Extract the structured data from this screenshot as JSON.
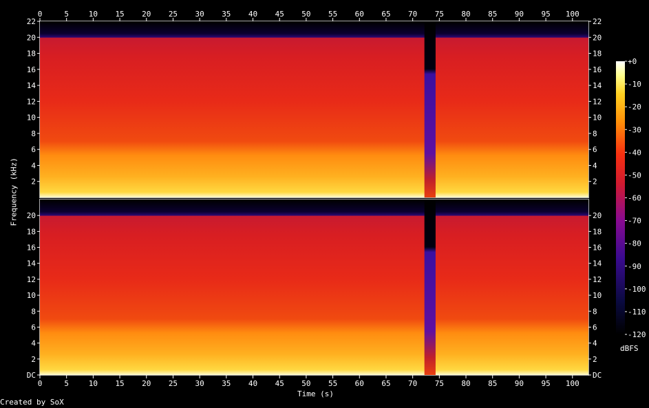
{
  "chart_data": {
    "type": "heatmap",
    "title": "",
    "xlabel": "Time (s)",
    "ylabel": "Frequency (kHz)",
    "credit": "Created by SoX",
    "x_range": [
      0,
      103
    ],
    "x_ticks": [
      "0",
      "5",
      "10",
      "15",
      "20",
      "25",
      "30",
      "35",
      "40",
      "45",
      "50",
      "55",
      "60",
      "65",
      "70",
      "75",
      "80",
      "85",
      "90",
      "95",
      "100"
    ],
    "y_range_khz": [
      0,
      22
    ],
    "y_ticks_top": [
      "2",
      "4",
      "6",
      "8",
      "10",
      "12",
      "14",
      "16",
      "18",
      "20",
      "22"
    ],
    "y_ticks_bottom": [
      "DC",
      "2",
      "4",
      "6",
      "8",
      "10",
      "12",
      "14",
      "16",
      "18",
      "20"
    ],
    "channels": 2,
    "colorbar": {
      "label": "dBFS",
      "range": [
        -120,
        0
      ],
      "ticks": [
        "+0",
        "-10",
        "-20",
        "-30",
        "-40",
        "-50",
        "-60",
        "-70",
        "-80",
        "-90",
        "-100",
        "-110",
        "-120"
      ]
    },
    "lowpass_cutoff_khz": 20,
    "quiet_segment": {
      "start_s": 72.2,
      "end_s": 74.3,
      "level_db": -100
    }
  }
}
